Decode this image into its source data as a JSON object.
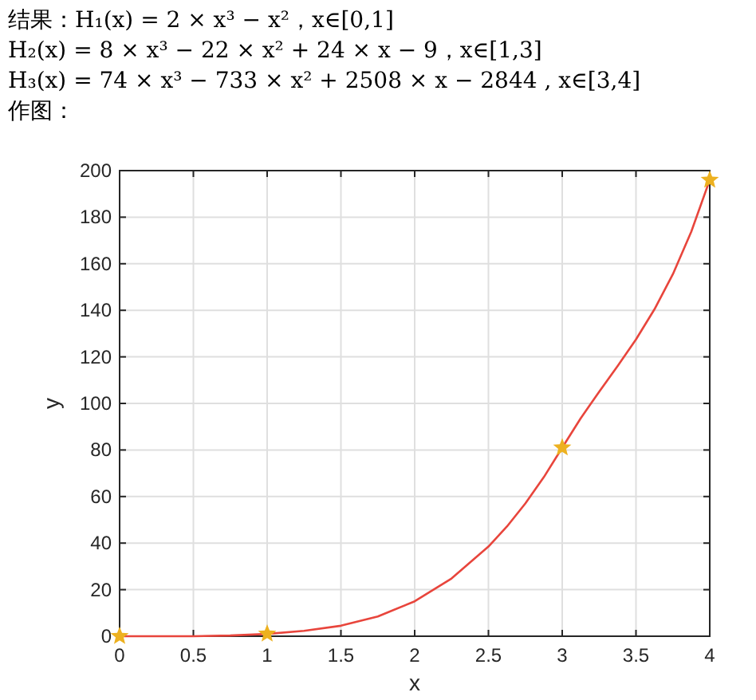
{
  "chart_data": {
    "type": "line",
    "annotations": [
      "结果：H₁(x) = 2 × x³ − x²，x∈[0,1]",
      "H₂(x) = 8 × x³ − 22 × x² + 24 × x − 9，x∈[1,3]",
      "H₃(x) = 74 × x³ − 733 × x² + 2508 × x − 2844 , x∈[3,4]",
      "作图："
    ],
    "xlabel": "x",
    "ylabel": "y",
    "xlim": [
      0,
      4
    ],
    "ylim": [
      0,
      200
    ],
    "xticks": [
      0,
      0.5,
      1,
      1.5,
      2,
      2.5,
      3,
      3.5,
      4
    ],
    "yticks": [
      0,
      20,
      40,
      60,
      80,
      100,
      120,
      140,
      160,
      180,
      200
    ],
    "grid": true,
    "series": [
      {
        "type": "line",
        "color": "#e8453c",
        "marker": "none",
        "x": [
          0,
          0.25,
          0.5,
          0.75,
          1,
          1.25,
          1.5,
          1.75,
          2,
          2.25,
          2.5,
          2.625,
          2.75,
          2.875,
          3,
          3.125,
          3.25,
          3.375,
          3.5,
          3.625,
          3.75,
          3.875,
          4
        ],
        "values": [
          0,
          0,
          0,
          0.3,
          1,
          2.3,
          4.5,
          8.5,
          15,
          24.8,
          38.5,
          47.1,
          57,
          68.3,
          81,
          93.6,
          105,
          116,
          127.5,
          140.4,
          155.5,
          173.8,
          196
        ]
      },
      {
        "type": "scatter",
        "color": "#edb120",
        "marker": "star",
        "x": [
          0,
          1,
          3,
          4
        ],
        "values": [
          0,
          1,
          81,
          196
        ]
      }
    ]
  }
}
